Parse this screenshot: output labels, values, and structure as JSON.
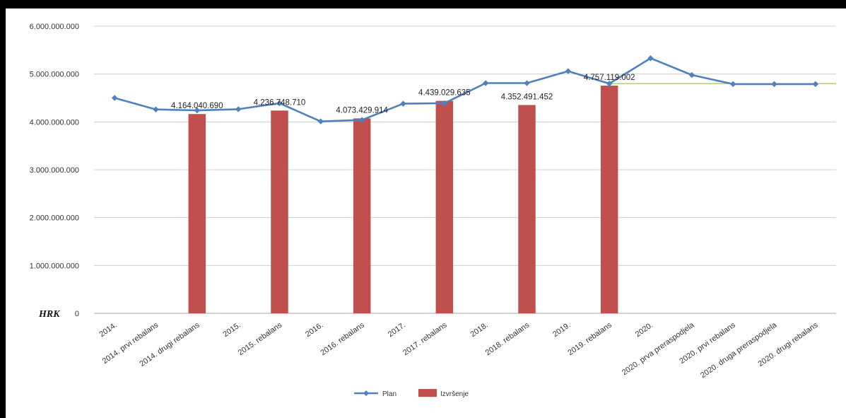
{
  "chart_data": {
    "type": "bar+line",
    "unit_label": "HRK",
    "ylim": [
      0,
      6000000000
    ],
    "y_ticks": [
      {
        "value": 0,
        "label": "0"
      },
      {
        "value": 1000000000,
        "label": "1.000.000.000"
      },
      {
        "value": 2000000000,
        "label": "2.000.000.000"
      },
      {
        "value": 3000000000,
        "label": "3.000.000.000"
      },
      {
        "value": 4000000000,
        "label": "4.000.000.000"
      },
      {
        "value": 5000000000,
        "label": "5.000.000.000"
      },
      {
        "value": 6000000000,
        "label": "6.000.000.000"
      }
    ],
    "grid": true,
    "legend_position": "bottom",
    "categories": [
      "2014.",
      "2014. prvi rebalans",
      "2014. drugi rebalans",
      "2015.",
      "2015. rebalans",
      "2016.",
      "2016. rebalans",
      "2017.",
      "2017. rebalans",
      "2018.",
      "2018. rebalans",
      "2019.",
      "2019. rebalans",
      "2020.",
      "2020. prva preraspodjela",
      "2020. prvi rebalans",
      "2020. druga preraspodjela",
      "2020. drugi rebalans"
    ],
    "series": [
      {
        "name": "Plan",
        "type": "line",
        "color": "#4f81bd",
        "values": [
          4500000000,
          4260000000,
          4240000000,
          4265000000,
          4390000000,
          4010000000,
          4040000000,
          4380000000,
          4390000000,
          4810000000,
          4810000000,
          5060000000,
          4800000000,
          5330000000,
          4980000000,
          4790000000,
          4790000000,
          4790000000
        ]
      },
      {
        "name": "Izvršenje",
        "type": "bar",
        "color": "#c0504d",
        "values": [
          null,
          null,
          4164040690,
          null,
          4236748710,
          null,
          4073429914,
          null,
          4439029635,
          null,
          4352491452,
          null,
          4757119002,
          null,
          null,
          null,
          null,
          null
        ],
        "data_labels": [
          null,
          null,
          "4.164.040.690",
          null,
          "4.236.748.710",
          null,
          "4.073.429.914",
          null,
          "4.439.029.635",
          null,
          "4.352.491.452",
          null,
          "4.757.119.002",
          null,
          null,
          null,
          null,
          null
        ]
      }
    ],
    "reference_line": {
      "value": 4800000000,
      "from_category": 12,
      "color": "#9bbb59"
    }
  }
}
